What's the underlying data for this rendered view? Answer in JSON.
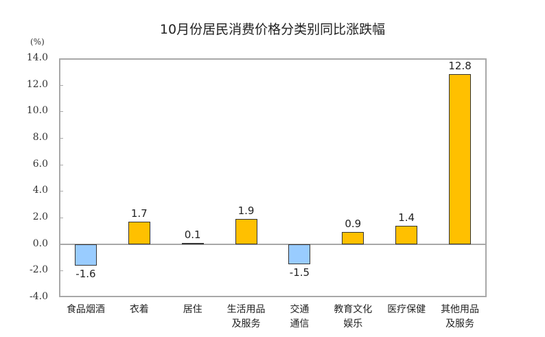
{
  "chart_data": {
    "type": "bar",
    "title": "10月份居民消费价格分类别同比涨跌幅",
    "ylabel": "(%)",
    "xlabel": "",
    "ylim": [
      -4.0,
      14.0
    ],
    "yticks": [
      "14.0",
      "12.0",
      "10.0",
      "8.0",
      "6.0",
      "4.0",
      "2.0",
      "0.0",
      "-2.0",
      "-4.0"
    ],
    "categories": [
      "食品烟酒",
      "衣着",
      "居住",
      "生活用品及服务",
      "交通通信",
      "教育文化娱乐",
      "医疗保健",
      "其他用品及服务"
    ],
    "category_lines": [
      [
        "食品烟酒"
      ],
      [
        "衣着"
      ],
      [
        "居住"
      ],
      [
        "生活用品",
        "及服务"
      ],
      [
        "交通",
        "通信"
      ],
      [
        "教育文化",
        "娱乐"
      ],
      [
        "医疗保健"
      ],
      [
        "其他用品",
        "及服务"
      ]
    ],
    "values": [
      -1.6,
      1.7,
      0.1,
      1.9,
      -1.5,
      0.9,
      1.4,
      12.8
    ],
    "value_labels": [
      "-1.6",
      "1.7",
      "0.1",
      "1.9",
      "-1.5",
      "0.9",
      "1.4",
      "12.8"
    ],
    "colors": {
      "positive": "#ffc000",
      "negative": "#99ccff"
    },
    "grid": false,
    "legend": null
  }
}
